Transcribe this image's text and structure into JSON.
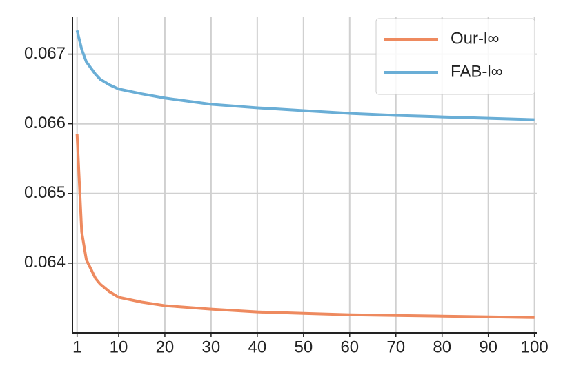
{
  "chart_data": {
    "type": "line",
    "x": [
      1,
      2,
      3,
      5,
      6,
      8,
      10,
      15,
      20,
      30,
      40,
      50,
      60,
      70,
      80,
      90,
      100
    ],
    "series": [
      {
        "name": "Our-l∞",
        "color": "#ee8a5f",
        "values": [
          0.06585,
          0.06445,
          0.06405,
          0.06378,
          0.0637,
          0.06359,
          0.06351,
          0.06344,
          0.06339,
          0.06334,
          0.0633,
          0.06328,
          0.06326,
          0.06325,
          0.06324,
          0.06323,
          0.06322
        ]
      },
      {
        "name": "FAB-l∞",
        "color": "#6aaed6",
        "values": [
          0.06734,
          0.06707,
          0.06689,
          0.06671,
          0.06664,
          0.06656,
          0.0665,
          0.06643,
          0.06637,
          0.06628,
          0.06623,
          0.06619,
          0.06615,
          0.06612,
          0.0661,
          0.06608,
          0.06606
        ]
      }
    ],
    "xlim": [
      0,
      100.5
    ],
    "ylim": [
      0.063,
      0.06753
    ],
    "xticks": [
      1,
      10,
      20,
      30,
      40,
      50,
      60,
      70,
      80,
      90,
      100
    ],
    "yticks": [
      0.064,
      0.065,
      0.066,
      0.067
    ],
    "grid": true,
    "legend": "upper right"
  }
}
